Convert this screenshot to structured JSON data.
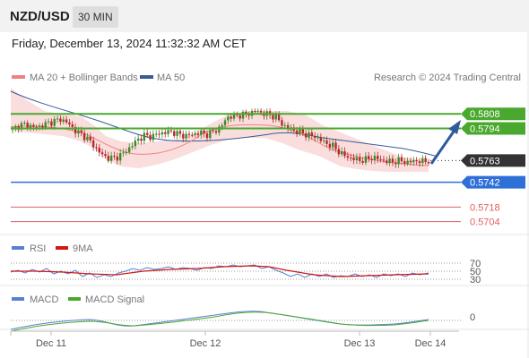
{
  "header": {
    "pair": "NZD/USD",
    "interval": "30 MIN"
  },
  "datetime": "Friday, December 13, 2024 11:32:32 AM CET",
  "colors": {
    "ma20": "#f08080",
    "ma50": "#3a5a98",
    "green": "#4aa82e",
    "blue": "#2f6fd8",
    "red": "#e06060",
    "rsi": "#5b7fd0",
    "rsi_ma": "#d01818",
    "macd": "#5b7fd0",
    "macd_signal": "#4aa82e"
  },
  "chart_data": [
    {
      "type": "candlestick",
      "legend": [
        {
          "name": "MA 20 + Bollinger Bands",
          "color": "#f08080"
        },
        {
          "name": "MA 50",
          "color": "#3a5a98"
        }
      ],
      "credit": "Research © 2024 Trading Central",
      "ylim": [
        0.5695,
        0.5835
      ],
      "x_ticks": [
        "Dec 11",
        "Dec 12",
        "Dec 13",
        "Dec 14"
      ],
      "levels": [
        {
          "value": 0.5808,
          "label": "0.5808",
          "style": "green-box"
        },
        {
          "value": 0.5794,
          "label": "0.5794",
          "style": "green-box"
        },
        {
          "value": 0.5763,
          "label": "0.5763",
          "style": "dark-box"
        },
        {
          "value": 0.5742,
          "label": "0.5742",
          "style": "blue-box"
        },
        {
          "value": 0.5718,
          "label": "0.5718",
          "style": "red-text"
        },
        {
          "value": 0.5704,
          "label": "0.5704",
          "style": "red-text"
        }
      ],
      "close_path": [
        0.5793,
        0.5797,
        0.5798,
        0.5795,
        0.5796,
        0.5799,
        0.5801,
        0.5803,
        0.5799,
        0.5792,
        0.5788,
        0.5783,
        0.5775,
        0.5768,
        0.5765,
        0.5766,
        0.577,
        0.5776,
        0.5783,
        0.5787,
        0.5786,
        0.5789,
        0.579,
        0.5791,
        0.5788,
        0.5787,
        0.5788,
        0.579,
        0.5788,
        0.5791,
        0.5795,
        0.5805,
        0.5806,
        0.5807,
        0.5808,
        0.5811,
        0.5809,
        0.5807,
        0.5805,
        0.5797,
        0.5794,
        0.5791,
        0.5789,
        0.5787,
        0.5785,
        0.578,
        0.5778,
        0.5772,
        0.5767,
        0.5765,
        0.5763,
        0.5764,
        0.5766,
        0.5764,
        0.5762,
        0.5762,
        0.5763,
        0.5761,
        0.5763,
        0.5762,
        0.5763
      ]
    },
    {
      "type": "line",
      "legend": [
        {
          "name": "RSI",
          "color": "#5b7fd0"
        },
        {
          "name": "9MA",
          "color": "#d01818"
        }
      ],
      "ylim": [
        20,
        80
      ],
      "y_ticks": [
        70,
        50,
        30
      ]
    },
    {
      "type": "line",
      "legend": [
        {
          "name": "MACD",
          "color": "#5b7fd0"
        },
        {
          "name": "MACD Signal",
          "color": "#4aa82e"
        }
      ],
      "y_ticks": [
        0
      ]
    }
  ]
}
